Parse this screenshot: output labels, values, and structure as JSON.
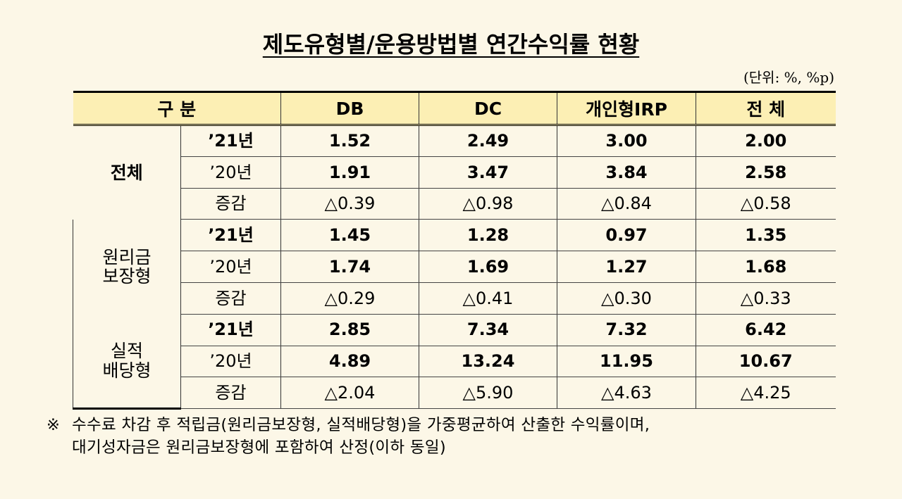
{
  "title": "제도유형별/운용방법별 연간수익률 현황",
  "unit": "(단위:  %,  %p)",
  "header": [
    "구 분",
    "DB",
    "DC",
    "개인형IRP",
    "전 체"
  ],
  "groups": [
    {
      "label_lines": [
        "전체"
      ],
      "rows": [
        {
          "label": "’21년",
          "values": [
            "1.52",
            "2.49",
            "3.00",
            "2.00"
          ]
        },
        {
          "label": "’20년",
          "values": [
            "1.91",
            "3.47",
            "3.84",
            "2.58"
          ]
        },
        {
          "label": "증감",
          "values": [
            "△0.39",
            "△0.98",
            "△0.84",
            "△0.58"
          ]
        }
      ]
    },
    {
      "label_lines": [
        "원리금",
        "보장형"
      ],
      "rows": [
        {
          "label": "’21년",
          "values": [
            "1.45",
            "1.28",
            "0.97",
            "1.35"
          ]
        },
        {
          "label": "’20년",
          "values": [
            "1.74",
            "1.69",
            "1.27",
            "1.68"
          ]
        },
        {
          "label": "증감",
          "values": [
            "△0.29",
            "△0.41",
            "△0.30",
            "△0.33"
          ]
        }
      ]
    },
    {
      "label_lines": [
        "실적",
        "배당형"
      ],
      "rows": [
        {
          "label": "’21년",
          "values": [
            "2.85",
            "7.34",
            "7.32",
            "6.42"
          ]
        },
        {
          "label": "’20년",
          "values": [
            "4.89",
            "13.24",
            "11.95",
            "10.67"
          ]
        },
        {
          "label": "증감",
          "values": [
            "△2.04",
            "△5.90",
            "△4.63",
            "△4.25"
          ]
        }
      ]
    }
  ],
  "note": {
    "mark": "※",
    "line1": "수수료 차감 후 적립금(원리금보장형, 실적배당형)을 가중평균하여 산출한 수익률이며,",
    "line2": "대기성자금은 원리금보장형에 포함하여 산정(이하 동일)"
  }
}
